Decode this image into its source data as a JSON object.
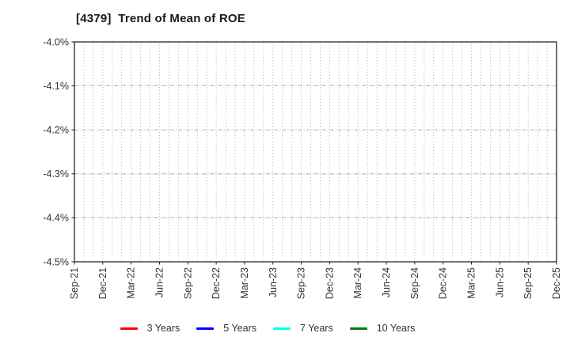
{
  "chart_data": {
    "type": "line",
    "title": "[4379]  Trend of Mean of ROE",
    "x_tick_labels": [
      "Sep-21",
      "Dec-21",
      "Mar-22",
      "Jun-22",
      "Sep-22",
      "Dec-22",
      "Mar-23",
      "Jun-23",
      "Sep-23",
      "Dec-23",
      "Mar-24",
      "Jun-24",
      "Sep-24",
      "Dec-24",
      "Mar-25",
      "Jun-25",
      "Sep-25",
      "Dec-25"
    ],
    "x_minor_gridlines_per_labeled_interval": 3,
    "y_tick_labels": [
      "-4.0%",
      "-4.1%",
      "-4.2%",
      "-4.3%",
      "-4.4%",
      "-4.5%"
    ],
    "ylim": [
      -4.5,
      -4.0
    ],
    "xlabel": "",
    "ylabel": "",
    "grid": "on",
    "legend_position": "bottom",
    "series": [
      {
        "name": "3 Years",
        "color": "#ff0000",
        "values": []
      },
      {
        "name": "5 Years",
        "color": "#0000ff",
        "values": []
      },
      {
        "name": "7 Years",
        "color": "#00ffff",
        "values": []
      },
      {
        "name": "10 Years",
        "color": "#008000",
        "values": []
      }
    ]
  },
  "colors": {
    "title": "#1a1a1a",
    "tick_label": "#333333",
    "plot_border": "#262626",
    "v_gridline": "#b3b3b3",
    "h_gridline": "#9e9e9e",
    "background": "#ffffff"
  }
}
